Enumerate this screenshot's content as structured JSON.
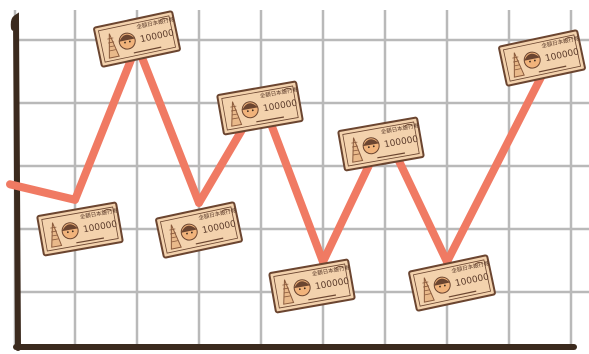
{
  "illustration": {
    "kind": "line-chart-illustration",
    "colors": {
      "background": "#ffffff",
      "grid": "#b9b9b9",
      "axis": "#3b2a1e",
      "line": "#f07a63",
      "note_fill": "#f3d2ad",
      "note_border": "#6b4530",
      "note_inner": "#e9b98a",
      "portrait_face": "#f1b37b",
      "tower": "#8a5a3c"
    },
    "banknote": {
      "header_text": "全額日本銀行券",
      "denomination_text": "100000",
      "icons": [
        "tower-icon",
        "portrait-icon"
      ]
    },
    "line_levels": [
      0.47,
      0.42,
      0.92,
      0.41,
      0.75,
      0.22,
      0.64,
      0.22,
      0.86
    ],
    "note_count": 8
  }
}
